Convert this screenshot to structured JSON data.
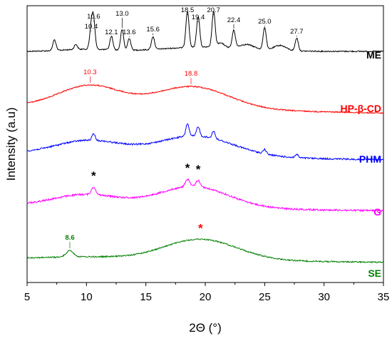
{
  "chart_data": {
    "type": "line",
    "xlabel": "2Θ (°)",
    "ylabel": "Intensity (a.u)",
    "xlim": [
      5,
      35
    ],
    "x_ticks": [
      "5",
      "10",
      "15",
      "20",
      "25",
      "30",
      "35"
    ],
    "grid": false,
    "series": [
      {
        "name": "ME",
        "color": "#000000",
        "kind": "crystalline",
        "peaks": [
          {
            "x": 7.3,
            "h": 0.25,
            "label": ""
          },
          {
            "x": 9.1,
            "h": 0.12,
            "label": ""
          },
          {
            "x": 10.4,
            "h": 0.5,
            "label": "10.4"
          },
          {
            "x": 10.6,
            "h": 0.65,
            "label": "10.6"
          },
          {
            "x": 12.1,
            "h": 0.32,
            "label": "12.1"
          },
          {
            "x": 13.0,
            "h": 0.48,
            "label": "13.0"
          },
          {
            "x": 13.6,
            "h": 0.28,
            "label": "13.6"
          },
          {
            "x": 15.6,
            "h": 0.3,
            "label": "15.6"
          },
          {
            "x": 18.5,
            "h": 0.85,
            "label": "18.5"
          },
          {
            "x": 19.4,
            "h": 0.72,
            "label": "19.4"
          },
          {
            "x": 20.7,
            "h": 0.82,
            "label": "20.7"
          },
          {
            "x": 22.4,
            "h": 0.4,
            "label": "22.4"
          },
          {
            "x": 25.0,
            "h": 0.52,
            "label": "25.0"
          },
          {
            "x": 27.7,
            "h": 0.3,
            "label": "27.7"
          }
        ]
      },
      {
        "name": "HP-β-CD",
        "color": "#ff0000",
        "kind": "amorphous",
        "peak_labels": [
          {
            "x": 10.3,
            "label": "10.3"
          },
          {
            "x": 18.8,
            "label": "18.8"
          }
        ]
      },
      {
        "name": "PHM",
        "color": "#0000ff",
        "kind": "mixture"
      },
      {
        "name": "G",
        "color": "#ff00ff",
        "kind": "ground",
        "markers": [
          {
            "x": 10.6,
            "label": "*"
          },
          {
            "x": 18.5,
            "label": "*"
          },
          {
            "x": 19.4,
            "label": "*"
          }
        ]
      },
      {
        "name": "SE",
        "color": "#008000",
        "kind": "complex",
        "peak_labels": [
          {
            "x": 8.6,
            "label": "8.6"
          }
        ],
        "markers": [
          {
            "x": 19.6,
            "label": "*",
            "color": "#ff0000"
          }
        ]
      }
    ]
  }
}
